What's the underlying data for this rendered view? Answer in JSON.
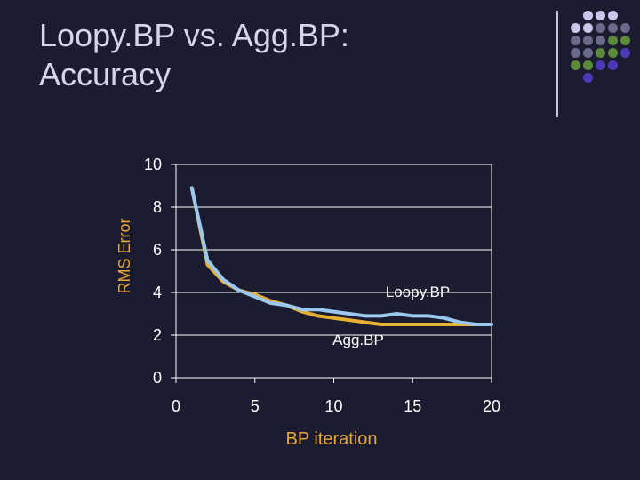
{
  "slide": {
    "title_line1": "Loopy.BP vs. Agg.BP:",
    "title_line2": "Accuracy"
  },
  "decoration": {
    "dot_colors": [
      "#c8c8ec",
      "#6a6a8a",
      "#5a8a3a",
      "#4a3ab8"
    ],
    "line_color": "#c8c8d6"
  },
  "chart_data": {
    "type": "line",
    "xlabel": "BP iteration",
    "ylabel": "RMS Error",
    "xlim": [
      0,
      20
    ],
    "ylim": [
      0,
      10
    ],
    "xticks": [
      0,
      5,
      10,
      15,
      20
    ],
    "yticks": [
      0,
      2,
      4,
      6,
      8,
      10
    ],
    "grid": true,
    "series": [
      {
        "name": "Agg.BP",
        "color": "#e8b030",
        "x": [
          1,
          2,
          3,
          4,
          5,
          6,
          7,
          8,
          9,
          10,
          11,
          12,
          13,
          14,
          15,
          16,
          17,
          18,
          19,
          20
        ],
        "y": [
          8.9,
          5.3,
          4.5,
          4.1,
          3.9,
          3.6,
          3.4,
          3.1,
          2.9,
          2.8,
          2.7,
          2.6,
          2.5,
          2.5,
          2.5,
          2.5,
          2.5,
          2.5,
          2.5,
          2.5
        ]
      },
      {
        "name": "Loopy.BP",
        "color": "#9ac8f0",
        "x": [
          1,
          2,
          3,
          4,
          5,
          6,
          7,
          8,
          9,
          10,
          11,
          12,
          13,
          14,
          15,
          16,
          17,
          18,
          19,
          20
        ],
        "y": [
          8.9,
          5.5,
          4.6,
          4.1,
          3.8,
          3.5,
          3.4,
          3.2,
          3.2,
          3.1,
          3.0,
          2.9,
          2.9,
          3.0,
          2.9,
          2.9,
          2.8,
          2.6,
          2.5,
          2.5
        ]
      }
    ],
    "labels": {
      "loopy": "Loopy.BP",
      "agg": "Agg.BP"
    }
  }
}
